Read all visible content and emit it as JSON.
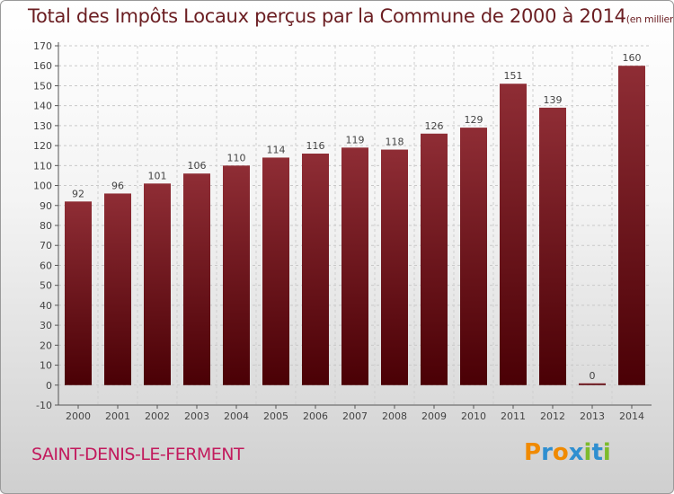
{
  "title": "Total des Impôts Locaux perçus par la Commune de 2000 à 2014",
  "unit_note": "(en milliers d'€)",
  "commune": "SAINT-DENIS-LE-FERMENT",
  "brand": "Proxiti",
  "brand_colors": [
    "#f08a00",
    "#2f8fd0",
    "#f08a00",
    "#2f8fd0",
    "#7dbb2c",
    "#2f8fd0",
    "#7dbb2c"
  ],
  "colors": {
    "bar_top": "#8f2d35",
    "bar_bottom": "#4a0005",
    "title": "#6b1e22",
    "commune": "#c21a5d"
  },
  "chart_data": {
    "type": "bar",
    "title": "Total des Impôts Locaux perçus par la Commune de 2000 à 2014",
    "unit": "(en milliers d'€)",
    "categories": [
      "2000",
      "2001",
      "2002",
      "2003",
      "2004",
      "2005",
      "2006",
      "2007",
      "2008",
      "2009",
      "2010",
      "2011",
      "2012",
      "2013",
      "2014"
    ],
    "values": [
      92,
      96,
      101,
      106,
      110,
      114,
      116,
      119,
      118,
      126,
      129,
      151,
      139,
      0,
      160
    ],
    "ylim": [
      -10,
      170
    ],
    "yticks": [
      -10,
      0,
      10,
      20,
      30,
      40,
      50,
      60,
      70,
      80,
      90,
      100,
      110,
      120,
      130,
      140,
      150,
      160,
      170
    ],
    "grid": true,
    "data_labels": true
  }
}
